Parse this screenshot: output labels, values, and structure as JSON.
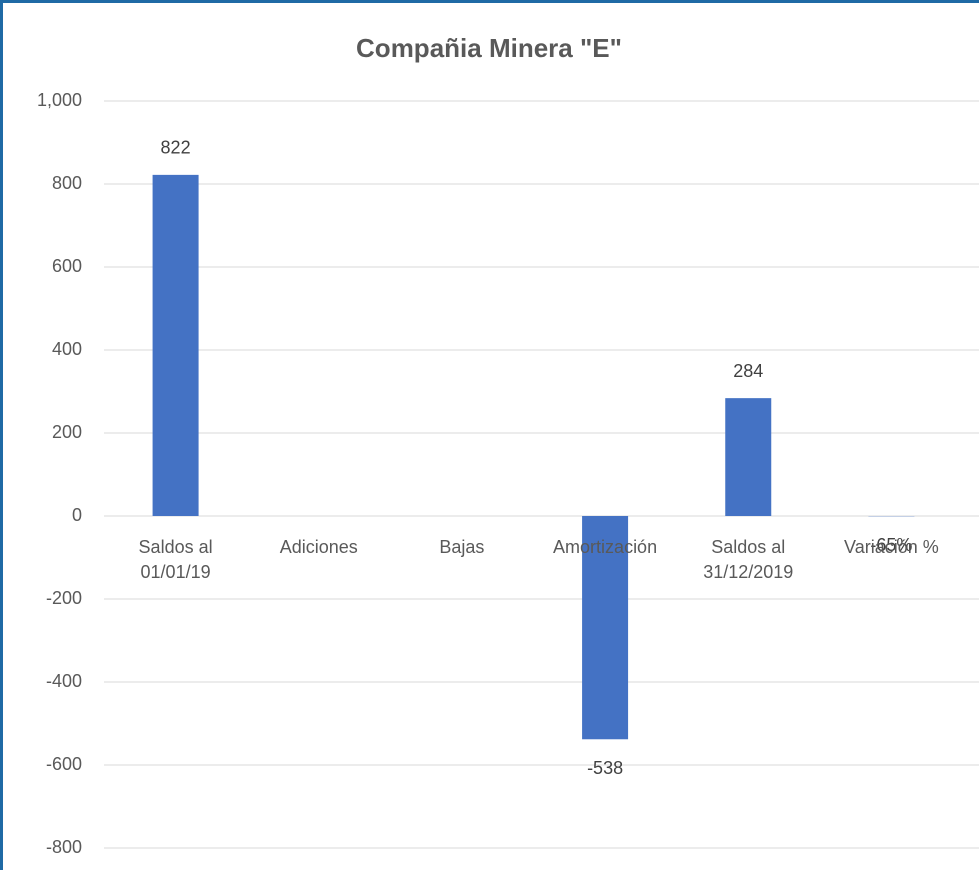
{
  "chart_data": {
    "type": "bar",
    "title": "Compañia Minera \"E\"",
    "categories": [
      "Saldos al 01/01/19",
      "Adiciones",
      "Bajas",
      "Amortización",
      "Saldos al 31/12/2019",
      "Variación %"
    ],
    "values": [
      822,
      null,
      null,
      -538,
      284,
      -0.65
    ],
    "value_labels": [
      null,
      null,
      null,
      null,
      null,
      "-65%"
    ],
    "color": "#4472c4",
    "ylim": [
      -800,
      1000
    ],
    "yticks": [
      -800,
      -600,
      -400,
      -200,
      0,
      200,
      400,
      600,
      800,
      {
        "value": 1000,
        "label": "1,000"
      }
    ],
    "grid": true
  }
}
